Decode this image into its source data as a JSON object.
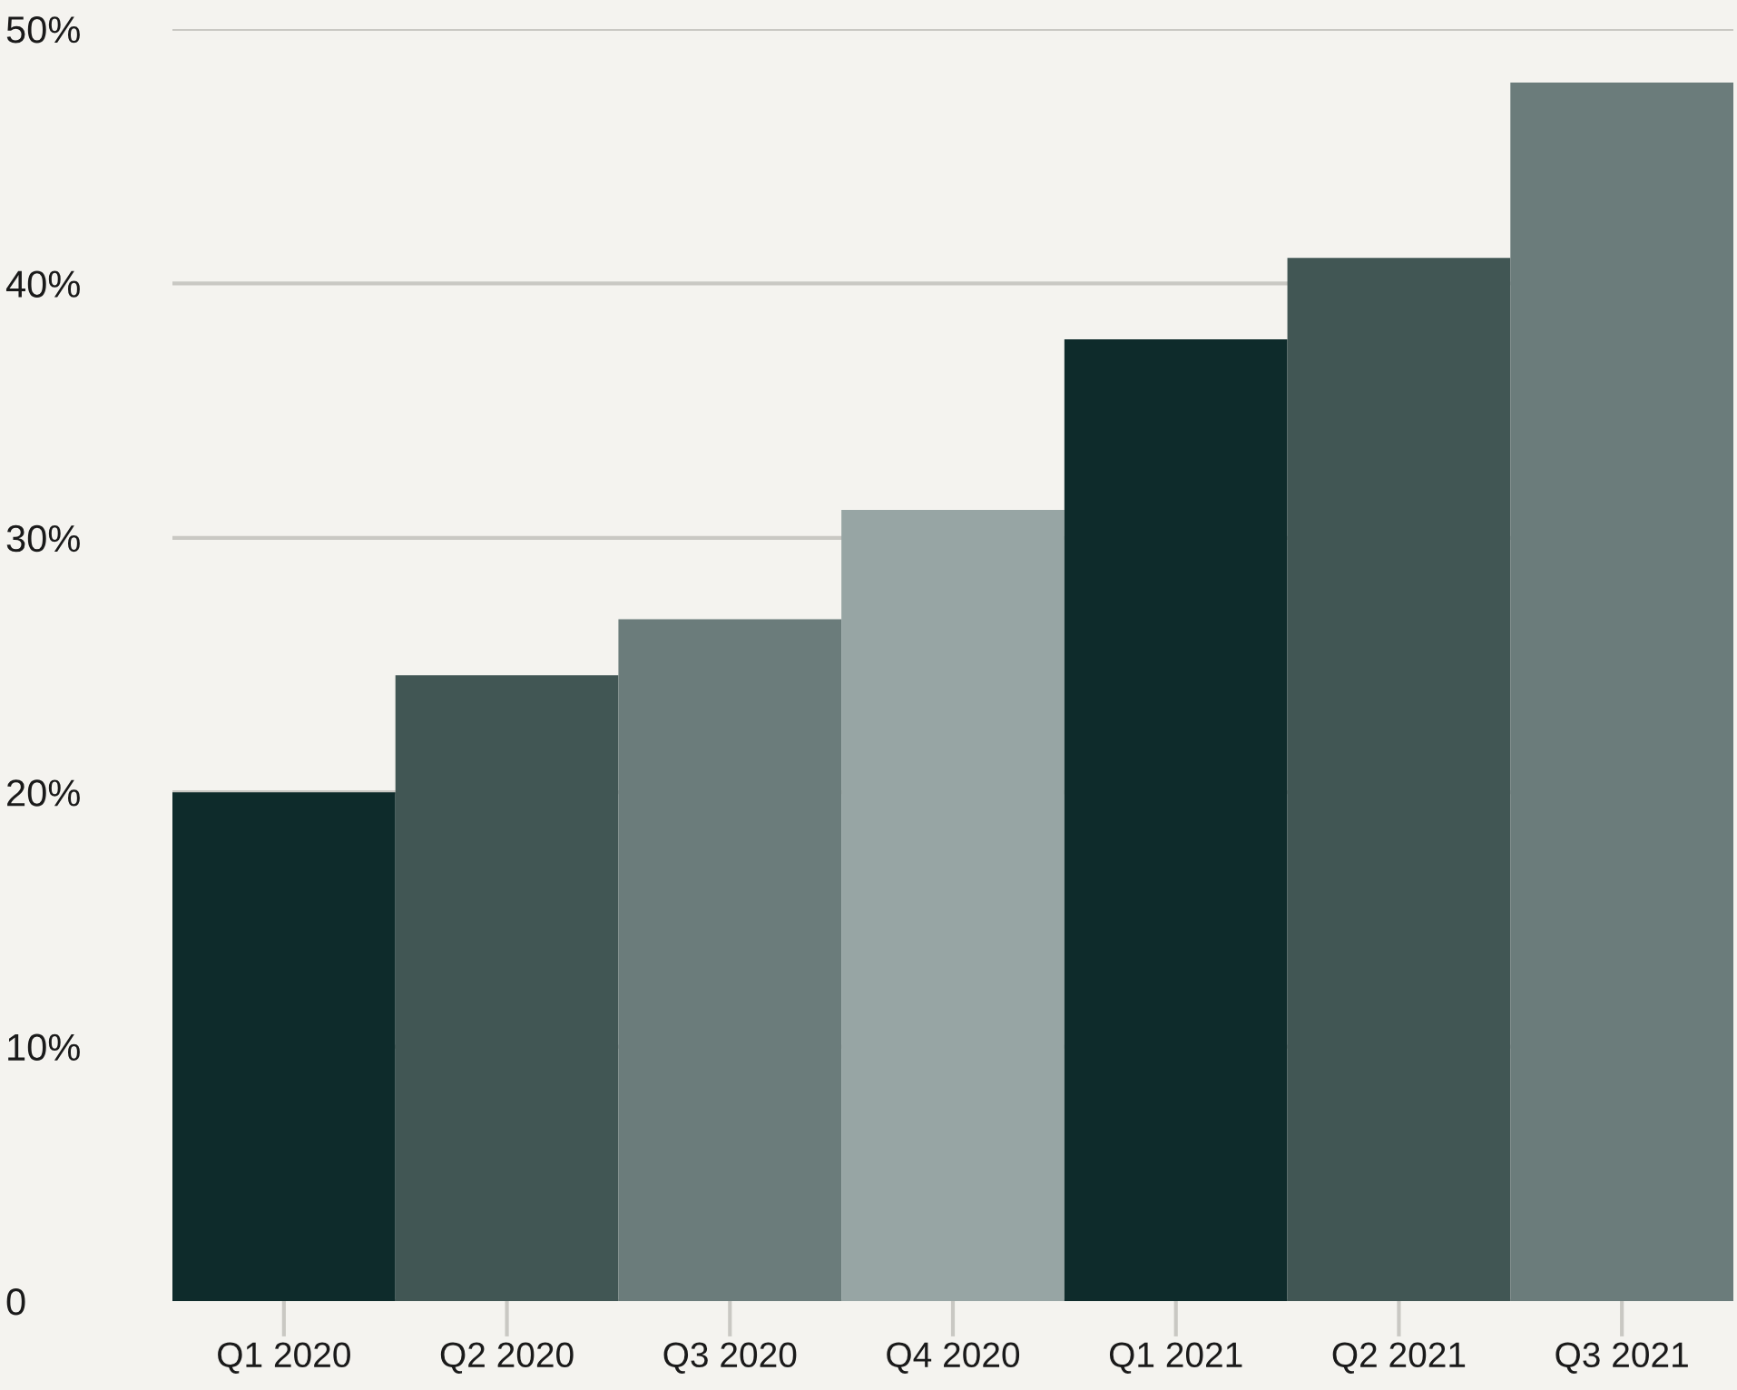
{
  "chart_data": {
    "type": "bar",
    "categories": [
      "Q1 2020",
      "Q2 2020",
      "Q3 2020",
      "Q4 2020",
      "Q1 2021",
      "Q2 2021",
      "Q3 2021"
    ],
    "values": [
      20.0,
      24.6,
      26.8,
      31.1,
      37.8,
      41.0,
      47.9
    ],
    "colors": [
      "#0e2b2b",
      "#415654",
      "#6b7c7b",
      "#97a5a4",
      "#0e2b2b",
      "#415654",
      "#6b7c7b"
    ],
    "ylim": [
      0,
      50
    ],
    "yticks": [
      {
        "value": 0,
        "label": "0"
      },
      {
        "value": 10,
        "label": "10%"
      },
      {
        "value": 20,
        "label": "20%"
      },
      {
        "value": 30,
        "label": "30%"
      },
      {
        "value": 40,
        "label": "40%"
      },
      {
        "value": 50,
        "label": "50%"
      }
    ],
    "grid": "y"
  }
}
